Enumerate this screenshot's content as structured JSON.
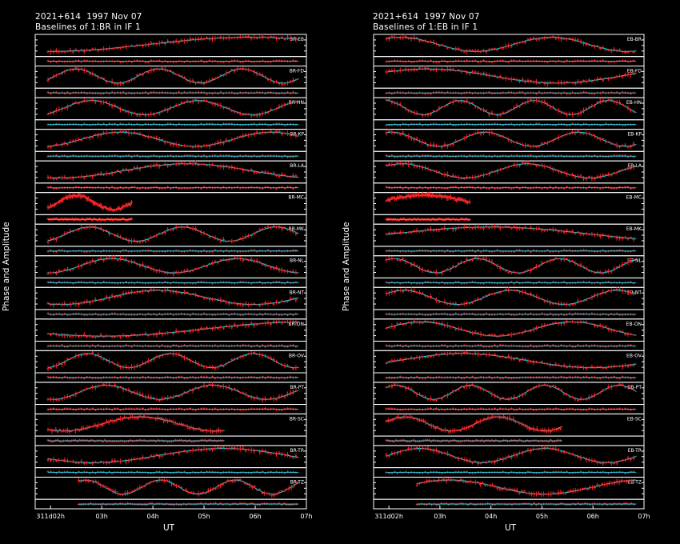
{
  "left": {
    "header_line1": "2021+614  1997 Nov 07",
    "header_line2": "Baselines of 1:BR in IF 1",
    "y_label": "Phase and Amplitude",
    "x_label": "UT",
    "x_ticks": [
      "311d02h",
      "03h",
      "04h",
      "05h",
      "06h",
      "07h"
    ],
    "baselines": [
      "BR-EB",
      "BR-FD",
      "BR-HN",
      "BR-KP",
      "BR-LA",
      "BR-MC",
      "BR-MK",
      "BR-NL",
      "BR-NT",
      "BR-ON",
      "BR-OV",
      "BR-PT",
      "BR-SC",
      "BR-TR",
      "BR-TZ"
    ]
  },
  "right": {
    "header_line1": "2021+614  1997 Nov 07",
    "header_line2": "Baselines of 1:EB in IF 1",
    "y_label": "Phase and Amplitude",
    "x_label": "UT",
    "x_ticks": [
      "311d02h",
      "03h",
      "04h",
      "05h",
      "06h",
      "07h"
    ],
    "baselines": [
      "EB-BR",
      "EB-FD",
      "EB-HN",
      "EB-KP",
      "EB-LA",
      "EB-MC",
      "EB-MK",
      "EB-NL",
      "EB-NT",
      "EB-ON",
      "EB-OV",
      "EB-PT",
      "EB-SC",
      "EB-TR",
      "EB-TZ"
    ]
  },
  "colors": {
    "data": "#ff2020",
    "model": "#00e5ff",
    "frame": "#ffffff",
    "background": "#000000"
  },
  "chart_data": {
    "type": "line",
    "x_range_hours": [
      1.7,
      7.0
    ],
    "series": [
      {
        "name": "data",
        "color": "#ff2020"
      },
      {
        "name": "model",
        "color": "#00e5ff"
      }
    ]
  }
}
